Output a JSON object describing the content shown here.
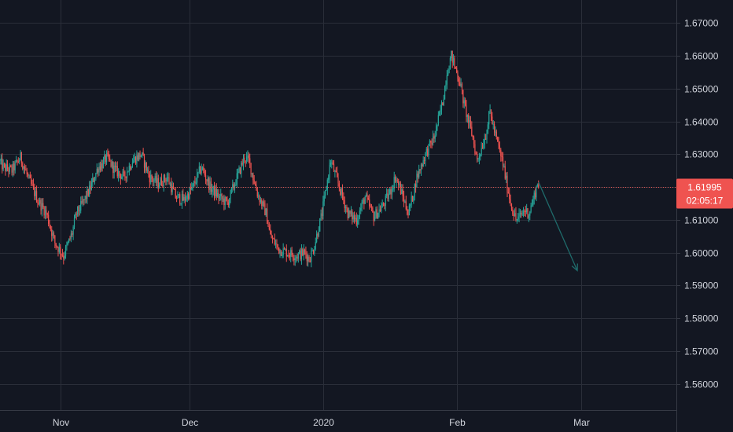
{
  "chart_data": {
    "type": "candlestick",
    "title": "",
    "xlabel": "",
    "ylabel": "",
    "ylim": [
      1.552,
      1.677
    ],
    "y_ticks": [
      "1.67000",
      "1.66000",
      "1.65000",
      "1.64000",
      "1.63000",
      "1.62000",
      "1.61000",
      "1.60000",
      "1.59000",
      "1.58000",
      "1.57000",
      "1.56000"
    ],
    "x_ticks": [
      {
        "label": "Nov",
        "day": 31
      },
      {
        "label": "Dec",
        "day": 61
      },
      {
        "label": "2020",
        "day": 92
      },
      {
        "label": "Feb",
        "day": 123
      },
      {
        "label": "Mar",
        "day": 152
      }
    ],
    "x_range_days": [
      17,
      174
    ],
    "last_bar_day": 142,
    "path_days": [
      17,
      18,
      20,
      22,
      24,
      26,
      28,
      30,
      32,
      34,
      35,
      36,
      38,
      40,
      41,
      42,
      44,
      46,
      48,
      50,
      52,
      54,
      56,
      58,
      60,
      62,
      64,
      66,
      68,
      70,
      72,
      74,
      75,
      77,
      79,
      80,
      82,
      84,
      86,
      88,
      89,
      90,
      92,
      93,
      94,
      96,
      97,
      98,
      100,
      102,
      104,
      106,
      108,
      109,
      110,
      112,
      113,
      114,
      116,
      118,
      120,
      121,
      122,
      123,
      124,
      125,
      126,
      127,
      128,
      130,
      131,
      132,
      134,
      135,
      136,
      137,
      138,
      139,
      140,
      141,
      142
    ],
    "path_prices": [
      1.628,
      1.626,
      1.625,
      1.629,
      1.622,
      1.616,
      1.612,
      1.603,
      1.599,
      1.606,
      1.612,
      1.614,
      1.619,
      1.626,
      1.627,
      1.629,
      1.625,
      1.623,
      1.628,
      1.63,
      1.623,
      1.621,
      1.623,
      1.617,
      1.616,
      1.62,
      1.626,
      1.62,
      1.617,
      1.615,
      1.622,
      1.629,
      1.628,
      1.618,
      1.612,
      1.605,
      1.601,
      1.6,
      1.599,
      1.6,
      1.598,
      1.601,
      1.612,
      1.62,
      1.628,
      1.62,
      1.616,
      1.612,
      1.61,
      1.617,
      1.611,
      1.614,
      1.619,
      1.623,
      1.62,
      1.612,
      1.617,
      1.623,
      1.63,
      1.635,
      1.646,
      1.655,
      1.66,
      1.656,
      1.652,
      1.645,
      1.64,
      1.635,
      1.628,
      1.636,
      1.643,
      1.637,
      1.627,
      1.62,
      1.614,
      1.61,
      1.611,
      1.613,
      1.612,
      1.616,
      1.621
    ],
    "current_price": "1.61995",
    "current_price_value": 1.61995,
    "countdown": "02:05:17",
    "projection_arrow": {
      "from": {
        "day": 142,
        "price": 1.6215
      },
      "to": {
        "day": 151,
        "price": 1.5945
      }
    },
    "colors": {
      "background": "#131722",
      "grid": "#2a2e39",
      "axis_text": "#d1d4dc",
      "up": "#26a69a",
      "down": "#ef5350",
      "price_line": "#ef5350",
      "price_label_bg": "#ef5350",
      "arrow": "#1f6b6b"
    }
  }
}
